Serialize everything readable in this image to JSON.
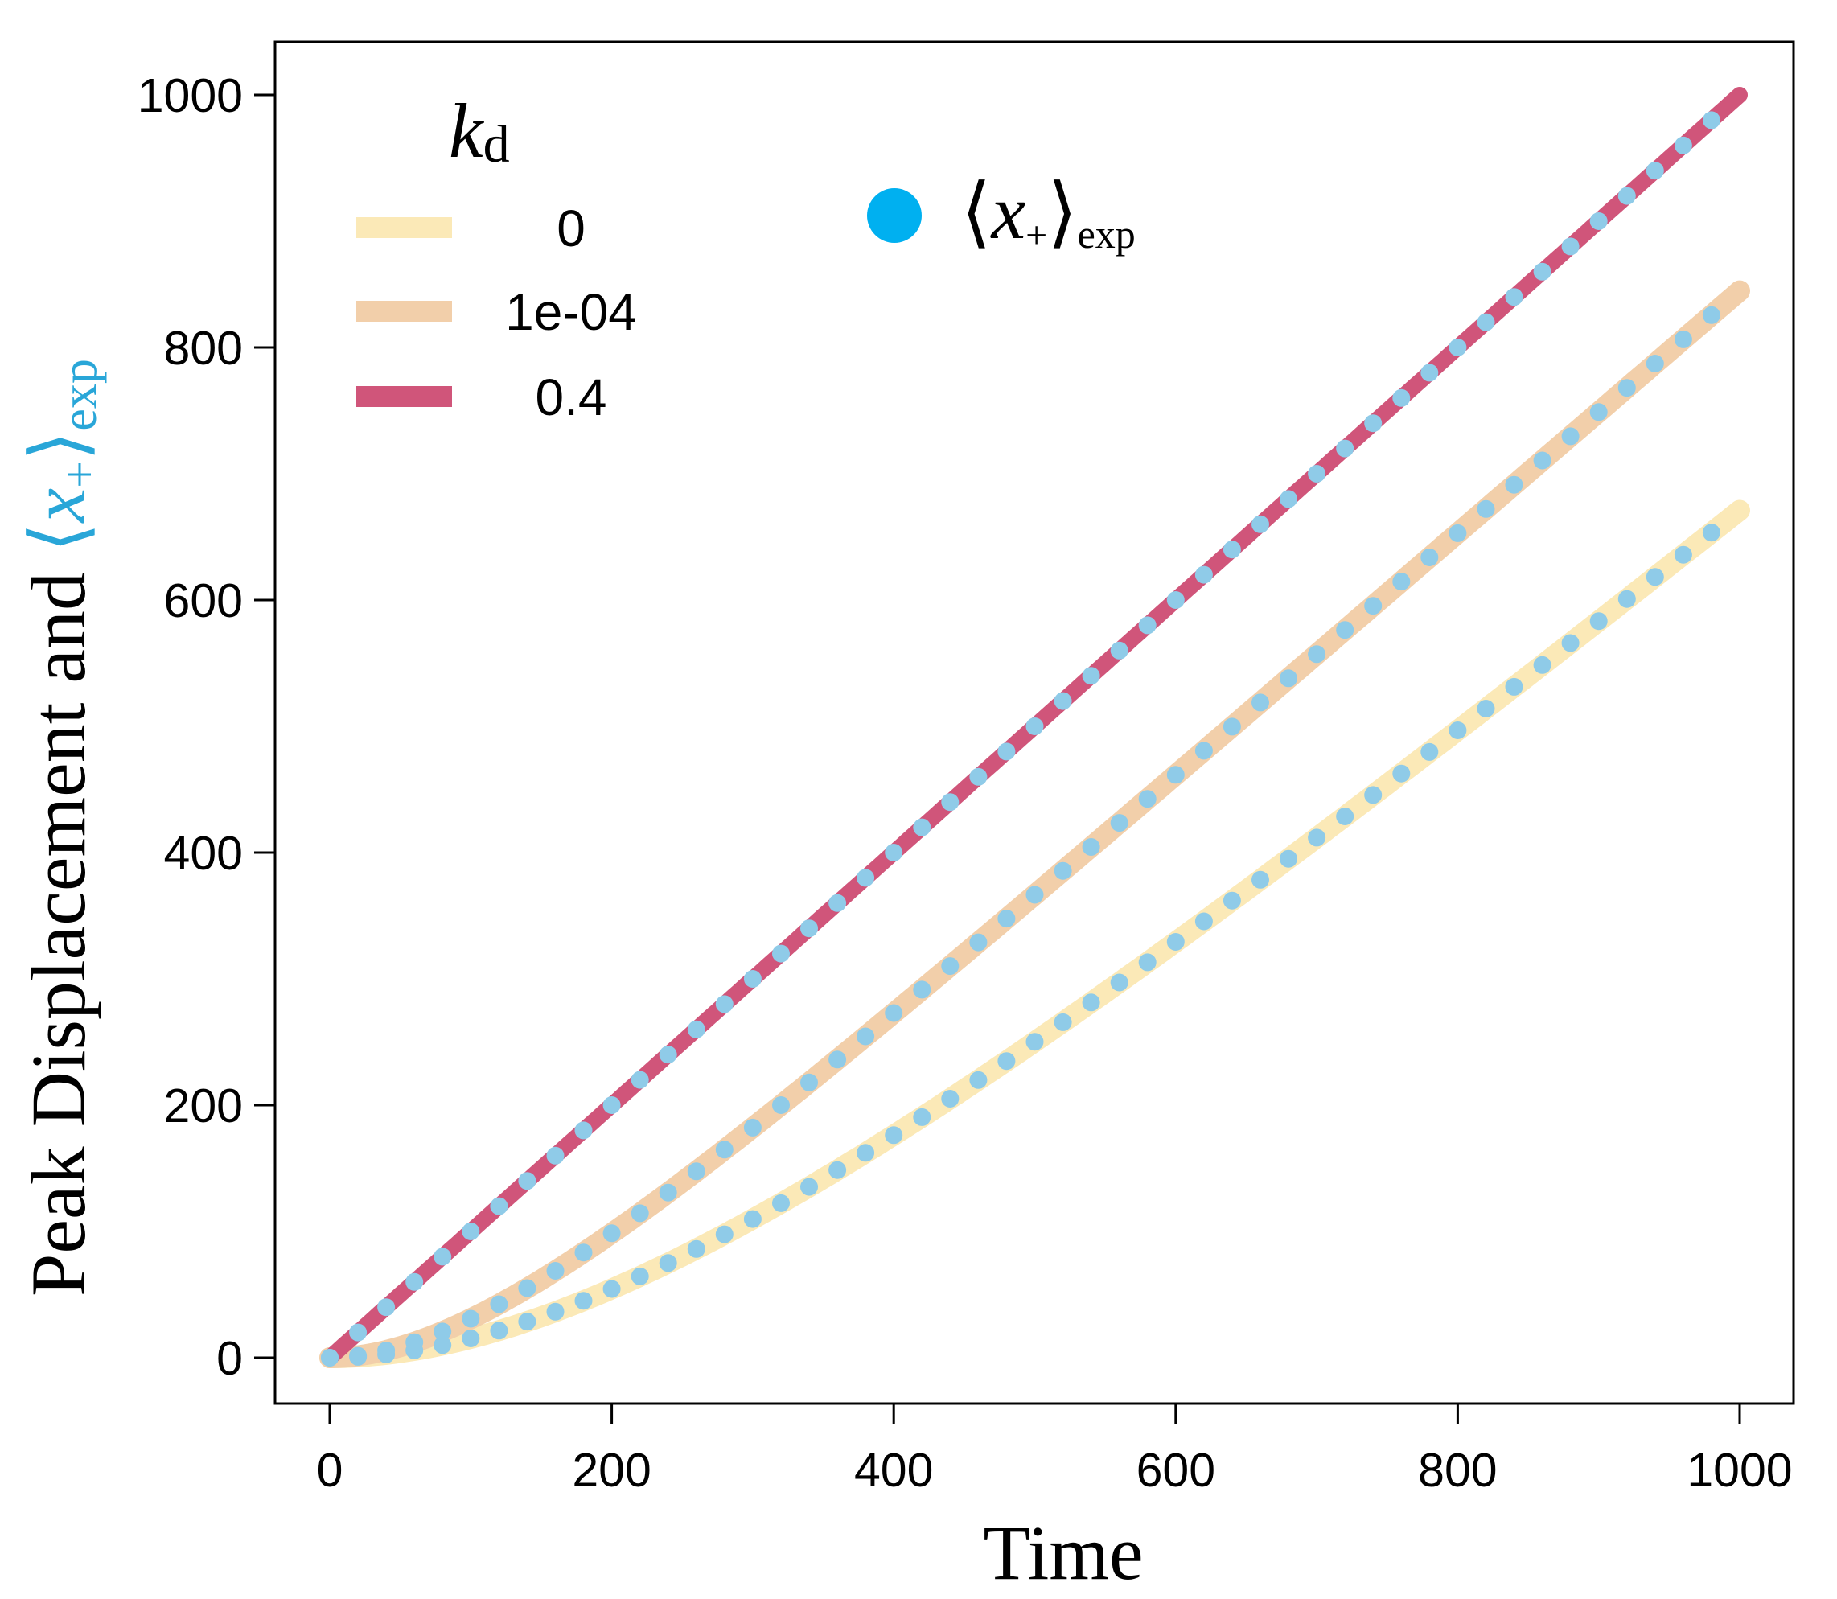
{
  "chart_data": {
    "type": "line",
    "title": "",
    "xlabel": "Time",
    "ylabel_prefix": "Peak Displacement and ",
    "ylabel_math": "⟨x₊⟩exp",
    "ylabel_math_parts": {
      "open": "⟨",
      "var": "x",
      "sub_plus": "+",
      "close": "⟩",
      "sub_exp": "exp"
    },
    "xlim": [
      0,
      1000
    ],
    "ylim": [
      0,
      1000
    ],
    "x_ticks": [
      0,
      200,
      400,
      600,
      800,
      1000
    ],
    "y_ticks": [
      0,
      200,
      400,
      600,
      800,
      1000
    ],
    "x_tick_labels": [
      "0",
      "200",
      "400",
      "600",
      "800",
      "1000"
    ],
    "y_tick_labels": [
      "0",
      "200",
      "400",
      "600",
      "800",
      "1000"
    ],
    "legend_title_var": "k",
    "legend_title_sub": "d",
    "legend_position": "top-left",
    "series": [
      {
        "name": "0",
        "color": "#fbe9b7",
        "model": {
          "v": 0.9,
          "tau": 260
        }
      },
      {
        "name": "1e-04",
        "color": "#f2cfaa",
        "model": {
          "v": 0.96,
          "tau": 120
        }
      },
      {
        "name": "0.4",
        "color": "#d0557a",
        "model": {
          "v": 1.0,
          "tau": 0
        }
      }
    ],
    "points_legend": {
      "var": "x",
      "sub_plus": "+",
      "sub_exp": "exp",
      "color": "#00b0f0"
    },
    "points_color": "#8fcbe8",
    "points_time_step": 20,
    "points_time_end": 980
  }
}
